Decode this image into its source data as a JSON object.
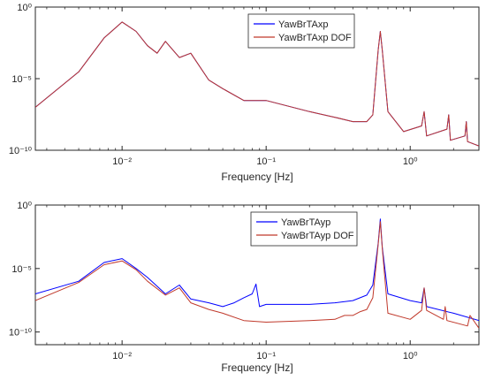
{
  "chart_data": [
    {
      "type": "line",
      "xscale": "log",
      "yscale": "log",
      "xlim": [
        0.0025,
        3
      ],
      "ylim": [
        1e-10,
        1
      ],
      "xlabel": "Frequency [Hz]",
      "ylabel": "",
      "x_tick_labels": [
        "10^-2",
        "10^-1",
        "10^0"
      ],
      "y_tick_labels": [
        "10^-10",
        "10^-5",
        "10^0"
      ],
      "grid": false,
      "legend_position": "top-right",
      "series": [
        {
          "name": "YawBrTAxp",
          "color": "#0000ff",
          "points": [
            [
              0.0025,
              1e-07
            ],
            [
              0.005,
              3e-05
            ],
            [
              0.0075,
              0.007
            ],
            [
              0.01,
              0.09
            ],
            [
              0.0125,
              0.02
            ],
            [
              0.015,
              0.002
            ],
            [
              0.0175,
              0.0006
            ],
            [
              0.02,
              0.004
            ],
            [
              0.025,
              0.0003
            ],
            [
              0.03,
              0.0006
            ],
            [
              0.04,
              8e-06
            ],
            [
              0.05,
              2e-06
            ],
            [
              0.07,
              3e-07
            ],
            [
              0.1,
              3e-07
            ],
            [
              0.2,
              5e-08
            ],
            [
              0.3,
              2e-08
            ],
            [
              0.4,
              1e-08
            ],
            [
              0.5,
              1e-08
            ],
            [
              0.55,
              3e-08
            ],
            [
              0.6,
              0.001
            ],
            [
              0.62,
              0.02
            ],
            [
              0.64,
              0.001
            ],
            [
              0.7,
              5e-08
            ],
            [
              0.9,
              2e-09
            ],
            [
              1.2,
              5e-09
            ],
            [
              1.25,
              5e-08
            ],
            [
              1.3,
              1e-09
            ],
            [
              1.8,
              3e-09
            ],
            [
              1.85,
              3e-08
            ],
            [
              1.9,
              5e-10
            ],
            [
              2.4,
              1e-09
            ],
            [
              2.45,
              1e-08
            ],
            [
              2.5,
              4e-10
            ],
            [
              3,
              2e-10
            ]
          ]
        },
        {
          "name": "YawBrTAxp DOF",
          "color": "#c0392b",
          "points": [
            [
              0.0025,
              1e-07
            ],
            [
              0.005,
              3e-05
            ],
            [
              0.0075,
              0.007
            ],
            [
              0.01,
              0.09
            ],
            [
              0.0125,
              0.02
            ],
            [
              0.015,
              0.002
            ],
            [
              0.0175,
              0.0006
            ],
            [
              0.02,
              0.004
            ],
            [
              0.025,
              0.0003
            ],
            [
              0.03,
              0.0006
            ],
            [
              0.04,
              8e-06
            ],
            [
              0.05,
              2e-06
            ],
            [
              0.07,
              3e-07
            ],
            [
              0.1,
              3e-07
            ],
            [
              0.2,
              5e-08
            ],
            [
              0.3,
              2e-08
            ],
            [
              0.4,
              1e-08
            ],
            [
              0.5,
              1e-08
            ],
            [
              0.55,
              3e-08
            ],
            [
              0.6,
              0.001
            ],
            [
              0.62,
              0.02
            ],
            [
              0.64,
              0.001
            ],
            [
              0.7,
              5e-08
            ],
            [
              0.9,
              2e-09
            ],
            [
              1.2,
              5e-09
            ],
            [
              1.25,
              5e-08
            ],
            [
              1.3,
              1e-09
            ],
            [
              1.8,
              3e-09
            ],
            [
              1.85,
              3e-08
            ],
            [
              1.9,
              5e-10
            ],
            [
              2.4,
              1e-09
            ],
            [
              2.45,
              1e-08
            ],
            [
              2.5,
              4e-10
            ],
            [
              3,
              2e-10
            ]
          ]
        }
      ]
    },
    {
      "type": "line",
      "xscale": "log",
      "yscale": "log",
      "xlim": [
        0.0025,
        3
      ],
      "ylim": [
        1e-11,
        1
      ],
      "xlabel": "Frequency [Hz]",
      "ylabel": "",
      "x_tick_labels": [
        "10^-2",
        "10^-1",
        "10^0"
      ],
      "y_tick_labels": [
        "10^-10",
        "10^-5",
        "10^0"
      ],
      "grid": false,
      "legend_position": "top-right",
      "series": [
        {
          "name": "YawBrTAyp",
          "color": "#0000ff",
          "points": [
            [
              0.0025,
              1e-07
            ],
            [
              0.005,
              1e-06
            ],
            [
              0.0075,
              3e-05
            ],
            [
              0.01,
              6e-05
            ],
            [
              0.0125,
              1e-05
            ],
            [
              0.015,
              2e-06
            ],
            [
              0.02,
              1e-07
            ],
            [
              0.025,
              5e-07
            ],
            [
              0.03,
              4e-08
            ],
            [
              0.04,
              2e-08
            ],
            [
              0.05,
              1e-08
            ],
            [
              0.06,
              2e-08
            ],
            [
              0.07,
              5e-08
            ],
            [
              0.08,
              1e-07
            ],
            [
              0.085,
              6e-07
            ],
            [
              0.09,
              1e-08
            ],
            [
              0.1,
              1.5e-08
            ],
            [
              0.15,
              1.5e-08
            ],
            [
              0.2,
              1.5e-08
            ],
            [
              0.3,
              2e-08
            ],
            [
              0.4,
              3e-08
            ],
            [
              0.5,
              8e-08
            ],
            [
              0.55,
              5e-07
            ],
            [
              0.6,
              0.001
            ],
            [
              0.62,
              0.08
            ],
            [
              0.64,
              0.0005
            ],
            [
              0.7,
              1e-07
            ],
            [
              1.0,
              3e-08
            ],
            [
              1.2,
              2e-08
            ],
            [
              1.25,
              3e-07
            ],
            [
              1.3,
              1e-08
            ],
            [
              2.0,
              3e-09
            ],
            [
              3,
              8e-10
            ]
          ]
        },
        {
          "name": "YawBrTAyp DOF",
          "color": "#c0392b",
          "points": [
            [
              0.0025,
              3e-08
            ],
            [
              0.005,
              8e-07
            ],
            [
              0.0075,
              2e-05
            ],
            [
              0.01,
              4e-05
            ],
            [
              0.0125,
              8e-06
            ],
            [
              0.015,
              1e-06
            ],
            [
              0.02,
              8e-08
            ],
            [
              0.025,
              3e-07
            ],
            [
              0.03,
              2e-08
            ],
            [
              0.04,
              6e-09
            ],
            [
              0.05,
              3e-09
            ],
            [
              0.07,
              8e-10
            ],
            [
              0.1,
              6e-10
            ],
            [
              0.2,
              8e-10
            ],
            [
              0.3,
              1e-09
            ],
            [
              0.35,
              2e-09
            ],
            [
              0.4,
              2e-09
            ],
            [
              0.45,
              4e-09
            ],
            [
              0.5,
              6e-09
            ],
            [
              0.55,
              5e-08
            ],
            [
              0.6,
              0.0008
            ],
            [
              0.62,
              0.05
            ],
            [
              0.64,
              0.0004
            ],
            [
              0.7,
              3e-09
            ],
            [
              1.0,
              1e-09
            ],
            [
              1.2,
              5e-09
            ],
            [
              1.25,
              3e-07
            ],
            [
              1.3,
              5e-09
            ],
            [
              1.7,
              1e-09
            ],
            [
              1.75,
              1e-08
            ],
            [
              1.8,
              8e-10
            ],
            [
              2.5,
              3e-10
            ],
            [
              2.6,
              2e-09
            ],
            [
              3,
              2e-10
            ]
          ]
        }
      ]
    }
  ]
}
